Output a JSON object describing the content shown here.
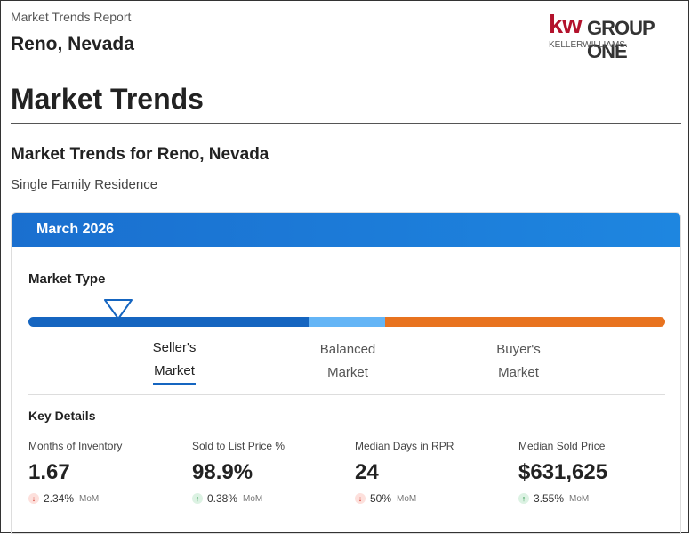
{
  "header": {
    "report_label": "Market Trends Report",
    "city": "Reno, Nevada"
  },
  "logo": {
    "kw": "kw",
    "group": "GROUP ONE",
    "sub": "KELLERWILLIAMS.",
    "brand_color": "#b3122c"
  },
  "page_title": "Market Trends",
  "section": {
    "title": "Market Trends for Reno, Nevada",
    "property_type": "Single Family Residence"
  },
  "card": {
    "date": "March 2026",
    "header_color": "#1a6fcf",
    "market_type": {
      "label": "Market Type",
      "selected": "Seller's Market",
      "options": [
        {
          "line1": "Seller's",
          "line2": "Market",
          "color": "#1565c0"
        },
        {
          "line1": "Balanced",
          "line2": "Market",
          "color": "#64b5f6"
        },
        {
          "line1": "Buyer's",
          "line2": "Market",
          "color": "#e8731f"
        }
      ]
    },
    "key_details": {
      "label": "Key Details",
      "metrics": [
        {
          "label": "Months of Inventory",
          "value": "1.67",
          "change": "2.34%",
          "direction": "down",
          "period": "MoM"
        },
        {
          "label": "Sold to List Price %",
          "value": "98.9%",
          "change": "0.38%",
          "direction": "up",
          "period": "MoM"
        },
        {
          "label": "Median Days in RPR",
          "value": "24",
          "change": "50%",
          "direction": "down",
          "period": "MoM"
        },
        {
          "label": "Median Sold Price",
          "value": "$631,625",
          "change": "3.55%",
          "direction": "up",
          "period": "MoM"
        }
      ]
    }
  }
}
